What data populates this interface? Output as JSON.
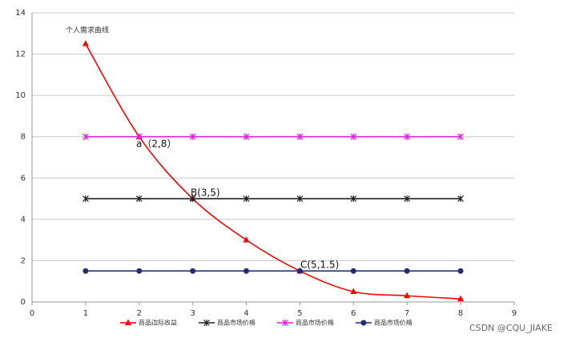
{
  "chart_data": {
    "type": "line",
    "title": "个人需求曲线",
    "x": [
      1,
      2,
      3,
      4,
      5,
      6,
      7,
      8
    ],
    "series": [
      {
        "name": "商品边际收益",
        "color": "#ff0000",
        "marker": "triangle",
        "smooth": true,
        "values": [
          12.5,
          8,
          5,
          3,
          1.5,
          0.5,
          0.3,
          0.15
        ]
      },
      {
        "name": "商品市场价格",
        "color": "#222222",
        "marker": "x",
        "values": [
          5,
          5,
          5,
          5,
          5,
          5,
          5,
          5
        ]
      },
      {
        "name": "商品市场价格",
        "color": "#e020e0",
        "marker": "x",
        "values": [
          8,
          8,
          8,
          8,
          8,
          8,
          8,
          8
        ]
      },
      {
        "name": "商品市场价格",
        "color": "#1f2a7a",
        "marker": "circle",
        "values": [
          1.5,
          1.5,
          1.5,
          1.5,
          1.5,
          1.5,
          1.5,
          1.5
        ]
      }
    ],
    "annotations": [
      "a（2,8）",
      "B(3,5)",
      "C(5,1.5)"
    ],
    "xlim": [
      0,
      9
    ],
    "xticks": [
      0,
      1,
      2,
      3,
      4,
      5,
      6,
      7,
      8,
      9
    ],
    "ylim": [
      0,
      14
    ],
    "yticks": [
      0,
      2,
      4,
      6,
      8,
      10,
      12,
      14
    ],
    "grid": true,
    "legend": "bottom"
  },
  "watermark": "CSDN @CQU_JIAKE"
}
